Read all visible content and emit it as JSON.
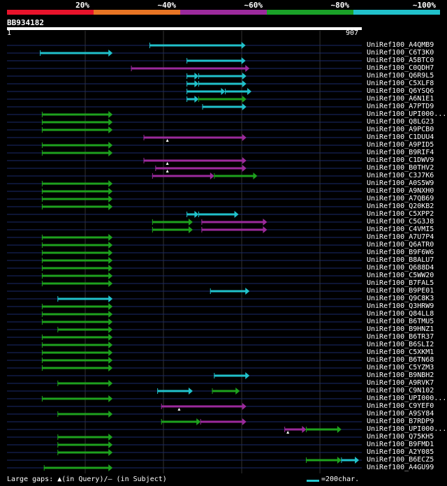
{
  "legend": {
    "labels": [
      "20%",
      "~40%",
      "~60%",
      "~80%",
      "~100%"
    ],
    "colors": [
      "#e8132b",
      "#e87524",
      "#9b2a9c",
      "#1aa128",
      "#21c1cb"
    ]
  },
  "query": {
    "name": "BB934182",
    "start_label": "1",
    "end_label": "907",
    "length": 907
  },
  "colors": {
    "cyan": "#21c1cb",
    "green": "#1ea11e",
    "purple": "#9b2a9c",
    "grid": "#333",
    "row_line": "#1a2a6a",
    "bg": "#000"
  },
  "hits": [
    {
      "name": "UniRef100_A4QMB9",
      "segs": [
        [
          365,
          610,
          "c"
        ]
      ]
    },
    {
      "name": "UniRef100_C6T3K0",
      "segs": [
        [
          85,
          270,
          "c"
        ]
      ]
    },
    {
      "name": "UniRef100_A5BTC0",
      "segs": [
        [
          460,
          610,
          "c"
        ]
      ]
    },
    {
      "name": "UniRef100_C0QDH7",
      "segs": [
        [
          318,
          620,
          "p"
        ]
      ]
    },
    {
      "name": "UniRef100_Q6R9L5",
      "segs": [
        [
          460,
          490,
          "c"
        ],
        [
          490,
          612,
          "c"
        ]
      ]
    },
    {
      "name": "UniRef100_C5XLF8",
      "segs": [
        [
          460,
          490,
          "c"
        ],
        [
          490,
          612,
          "c"
        ]
      ]
    },
    {
      "name": "UniRef100_Q6YSQ6",
      "segs": [
        [
          460,
          558,
          "c"
        ],
        [
          558,
          625,
          "c"
        ]
      ]
    },
    {
      "name": "UniRef100_A6N1E1",
      "segs": [
        [
          460,
          490,
          "c"
        ],
        [
          490,
          612,
          "g"
        ]
      ]
    },
    {
      "name": "UniRef100_A7PTD9",
      "segs": [
        [
          500,
          612,
          "c"
        ]
      ]
    },
    {
      "name": "UniRef100_UPI000...",
      "segs": [
        [
          90,
          270,
          "g"
        ]
      ]
    },
    {
      "name": "UniRef100_Q8LG23",
      "segs": [
        [
          90,
          270,
          "g"
        ]
      ]
    },
    {
      "name": "UniRef100_A9PCB0",
      "segs": [
        [
          90,
          270,
          "g"
        ]
      ]
    },
    {
      "name": "UniRef100_C1DUU4",
      "segs": [
        [
          350,
          612,
          "p"
        ]
      ],
      "gap": 410
    },
    {
      "name": "UniRef100_A9PID5",
      "segs": [
        [
          90,
          270,
          "g"
        ]
      ]
    },
    {
      "name": "UniRef100_B9RIF4",
      "segs": [
        [
          90,
          270,
          "g"
        ]
      ]
    },
    {
      "name": "UniRef100_C1DWV9",
      "segs": [
        [
          350,
          612,
          "p"
        ]
      ],
      "gap": 410
    },
    {
      "name": "UniRef100_B0THV2",
      "segs": [
        [
          380,
          612,
          "p"
        ]
      ],
      "gap": 410
    },
    {
      "name": "UniRef100_C3J7K6",
      "segs": [
        [
          372,
          530,
          "p"
        ],
        [
          530,
          640,
          "g"
        ]
      ]
    },
    {
      "name": "UniRef100_A0S5W9",
      "segs": [
        [
          90,
          270,
          "g"
        ]
      ]
    },
    {
      "name": "UniRef100_A9NXH0",
      "segs": [
        [
          90,
          270,
          "g"
        ]
      ]
    },
    {
      "name": "UniRef100_A7QB69",
      "segs": [
        [
          90,
          270,
          "g"
        ]
      ]
    },
    {
      "name": "UniRef100_Q20KB2",
      "segs": [
        [
          90,
          270,
          "g"
        ]
      ]
    },
    {
      "name": "UniRef100_C5XPP2",
      "segs": [
        [
          460,
          490,
          "c"
        ],
        [
          490,
          592,
          "c"
        ]
      ]
    },
    {
      "name": "UniRef100_C5G3J8",
      "segs": [
        [
          372,
          475,
          "g"
        ],
        [
          498,
          665,
          "p"
        ]
      ]
    },
    {
      "name": "UniRef100_C4VMI5",
      "segs": [
        [
          372,
          475,
          "g"
        ],
        [
          498,
          665,
          "p"
        ]
      ]
    },
    {
      "name": "UniRef100_A7U7P4",
      "segs": [
        [
          90,
          270,
          "g"
        ]
      ]
    },
    {
      "name": "UniRef100_Q6ATR0",
      "segs": [
        [
          90,
          270,
          "g"
        ]
      ]
    },
    {
      "name": "UniRef100_B9F6W6",
      "segs": [
        [
          90,
          270,
          "g"
        ]
      ]
    },
    {
      "name": "UniRef100_B8ALU7",
      "segs": [
        [
          90,
          270,
          "g"
        ]
      ]
    },
    {
      "name": "UniRef100_Q688D4",
      "segs": [
        [
          90,
          270,
          "g"
        ]
      ]
    },
    {
      "name": "UniRef100_C5WW20",
      "segs": [
        [
          90,
          270,
          "g"
        ]
      ]
    },
    {
      "name": "UniRef100_B7FAL5",
      "segs": [
        [
          90,
          270,
          "g"
        ]
      ]
    },
    {
      "name": "UniRef100_B9PE01",
      "segs": [
        [
          520,
          620,
          "c"
        ]
      ]
    },
    {
      "name": "UniRef100_Q9C8K3",
      "segs": [
        [
          130,
          270,
          "c"
        ]
      ]
    },
    {
      "name": "UniRef100_Q3HRW9",
      "segs": [
        [
          90,
          270,
          "g"
        ]
      ]
    },
    {
      "name": "UniRef100_Q84LL8",
      "segs": [
        [
          90,
          270,
          "g"
        ]
      ]
    },
    {
      "name": "UniRef100_B6TMU5",
      "segs": [
        [
          90,
          270,
          "g"
        ]
      ]
    },
    {
      "name": "UniRef100_B9HNZ1",
      "segs": [
        [
          130,
          270,
          "g"
        ]
      ]
    },
    {
      "name": "UniRef100_B6TR37",
      "segs": [
        [
          90,
          270,
          "g"
        ]
      ]
    },
    {
      "name": "UniRef100_B6SLI2",
      "segs": [
        [
          90,
          270,
          "g"
        ]
      ]
    },
    {
      "name": "UniRef100_C5XKM1",
      "segs": [
        [
          90,
          270,
          "g"
        ]
      ]
    },
    {
      "name": "UniRef100_B6TN68",
      "segs": [
        [
          90,
          270,
          "g"
        ]
      ]
    },
    {
      "name": "UniRef100_C5YZM3",
      "segs": [
        [
          90,
          270,
          "g"
        ]
      ]
    },
    {
      "name": "UniRef100_B9NBH2",
      "segs": [
        [
          530,
          620,
          "c"
        ]
      ]
    },
    {
      "name": "UniRef100_A9RVK7",
      "segs": [
        [
          130,
          270,
          "g"
        ]
      ]
    },
    {
      "name": "UniRef100_C9N102",
      "segs": [
        [
          385,
          475,
          "c"
        ],
        [
          525,
          595,
          "g"
        ]
      ]
    },
    {
      "name": "UniRef100_UPI000...",
      "segs": [
        [
          90,
          270,
          "g"
        ]
      ]
    },
    {
      "name": "UniRef100_C9YEF0",
      "segs": [
        [
          395,
          612,
          "p"
        ]
      ],
      "gap": 440
    },
    {
      "name": "UniRef100_A9SY84",
      "segs": [
        [
          130,
          270,
          "g"
        ]
      ]
    },
    {
      "name": "UniRef100_B7RDP9",
      "segs": [
        [
          395,
          495,
          "g"
        ],
        [
          495,
          612,
          "p"
        ]
      ]
    },
    {
      "name": "UniRef100_UPI000...",
      "segs": [
        [
          710,
          765,
          "p"
        ],
        [
          765,
          855,
          "g"
        ]
      ],
      "gap": 718
    },
    {
      "name": "UniRef100_Q75KH5",
      "segs": [
        [
          130,
          270,
          "g"
        ]
      ]
    },
    {
      "name": "UniRef100_B9FMD1",
      "segs": [
        [
          130,
          270,
          "g"
        ]
      ]
    },
    {
      "name": "UniRef100_A2Y085",
      "segs": [
        [
          130,
          270,
          "g"
        ]
      ]
    },
    {
      "name": "UniRef100_B6ECZ5",
      "segs": [
        [
          765,
          855,
          "g"
        ],
        [
          855,
          900,
          "c"
        ]
      ]
    },
    {
      "name": "UniRef100_A4GU99",
      "segs": [
        [
          95,
          270,
          "g"
        ]
      ]
    }
  ],
  "footer": {
    "gaps_text": "Large gaps: ▲(in Query)/— (in Subject)",
    "scale_text": "=200char."
  }
}
